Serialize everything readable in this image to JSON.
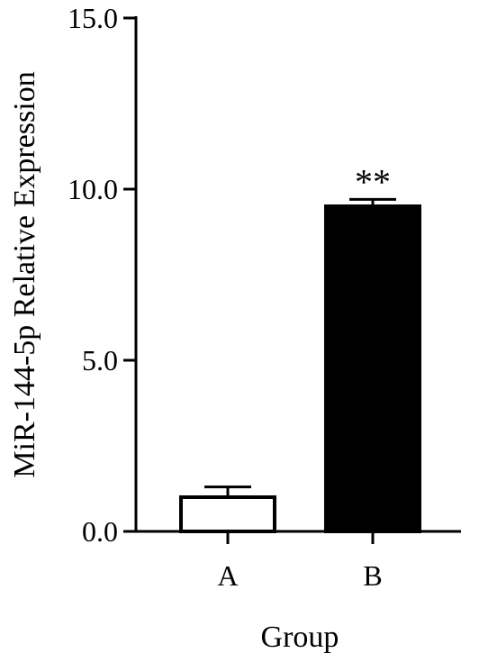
{
  "chart_data": {
    "type": "bar",
    "categories": [
      "A",
      "B"
    ],
    "values": [
      1.0,
      9.5
    ],
    "errors": [
      0.3,
      0.2
    ],
    "bar_fills": [
      "#ffffff",
      "#000000"
    ],
    "bar_stroke": "#000000",
    "annotations": [
      "",
      "**"
    ],
    "xlabel": "Group",
    "ylabel": "MiR-144-5p  Relative Expression",
    "ylim": [
      0,
      15
    ],
    "yticks": [
      "0.0",
      "5.0",
      "10.0",
      "15.0"
    ],
    "grid": false,
    "legend": "none"
  }
}
